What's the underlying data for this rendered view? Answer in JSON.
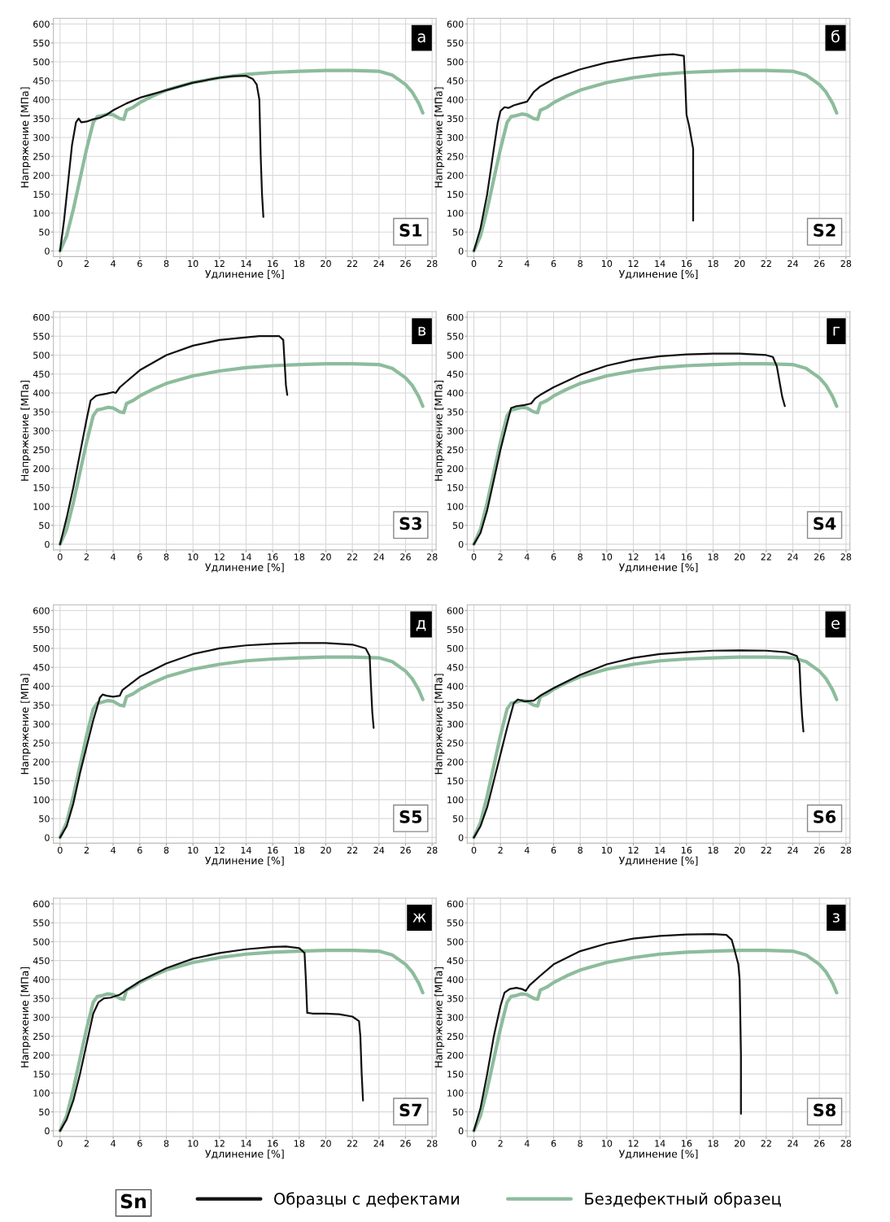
{
  "chart_data": [
    {
      "type": "line",
      "xlabel": "Удлинение [%]",
      "ylabel": "Напряжение [МПа]",
      "annotations": [
        "а",
        "S1"
      ],
      "xlim": [
        -0.5,
        28.3
      ],
      "ylim": [
        -15,
        615
      ],
      "xticks": [
        0,
        2,
        4,
        6,
        8,
        10,
        12,
        14,
        16,
        18,
        20,
        22,
        24,
        26,
        28
      ],
      "yticks": [
        0,
        50,
        100,
        150,
        200,
        250,
        300,
        350,
        400,
        450,
        500,
        550,
        600
      ],
      "grid": true,
      "legend": "bottom",
      "legend_title": "Sn",
      "series": [
        {
          "name": "Образцы с дефектами",
          "color": "#111111",
          "x": [
            0,
            0.3,
            0.6,
            0.9,
            1.2,
            1.4,
            1.6,
            2,
            2.5,
            3,
            3.5,
            4,
            5,
            6,
            8,
            10,
            12,
            13,
            14,
            14.5,
            14.8,
            15,
            15.1,
            15.2,
            15.3
          ],
          "values": [
            0,
            80,
            180,
            280,
            340,
            350,
            340,
            342,
            348,
            352,
            360,
            372,
            390,
            405,
            425,
            445,
            458,
            462,
            463,
            455,
            440,
            400,
            250,
            150,
            90
          ]
        },
        {
          "name": "Бездефектный образец",
          "color": "#8dbc9c",
          "x": [
            0,
            0.5,
            1,
            1.5,
            2,
            2.5,
            2.8,
            3.2,
            3.6,
            4,
            4.5,
            4.8,
            5,
            5.5,
            6,
            7,
            8,
            10,
            12,
            14,
            16,
            18,
            20,
            22,
            24,
            25,
            26,
            26.5,
            27,
            27.3
          ],
          "values": [
            0,
            40,
            110,
            190,
            270,
            340,
            355,
            358,
            362,
            360,
            350,
            348,
            372,
            380,
            392,
            410,
            425,
            445,
            458,
            467,
            472,
            475,
            477,
            477,
            475,
            465,
            440,
            420,
            390,
            365
          ]
        }
      ]
    },
    {
      "type": "line",
      "xlabel": "Удлинение [%]",
      "ylabel": "Напряжение [МПа]",
      "annotations": [
        "б",
        "S2"
      ],
      "xlim": [
        -0.5,
        28.3
      ],
      "ylim": [
        -15,
        615
      ],
      "xticks": [
        0,
        2,
        4,
        6,
        8,
        10,
        12,
        14,
        16,
        18,
        20,
        22,
        24,
        26,
        28
      ],
      "yticks": [
        0,
        50,
        100,
        150,
        200,
        250,
        300,
        350,
        400,
        450,
        500,
        550,
        600
      ],
      "grid": true,
      "series": [
        {
          "color": "#111111",
          "x": [
            0,
            0.5,
            1,
            1.5,
            1.8,
            2,
            2.3,
            2.6,
            3,
            3.5,
            4,
            4.5,
            5,
            6,
            8,
            10,
            12,
            14,
            15,
            15.8,
            15.9,
            16,
            16.2,
            16.4,
            16.5,
            16.5
          ],
          "values": [
            0,
            60,
            150,
            270,
            340,
            370,
            380,
            378,
            385,
            390,
            395,
            420,
            435,
            455,
            480,
            498,
            510,
            518,
            520,
            516,
            450,
            360,
            330,
            290,
            270,
            80
          ]
        },
        {
          "color": "#8dbc9c",
          "x": [
            0,
            0.5,
            1,
            1.5,
            2,
            2.5,
            2.8,
            3.2,
            3.6,
            4,
            4.5,
            4.8,
            5,
            5.5,
            6,
            7,
            8,
            10,
            12,
            14,
            16,
            18,
            20,
            22,
            24,
            25,
            26,
            26.5,
            27,
            27.3
          ],
          "values": [
            0,
            40,
            110,
            190,
            270,
            340,
            355,
            358,
            362,
            360,
            350,
            348,
            372,
            380,
            392,
            410,
            425,
            445,
            458,
            467,
            472,
            475,
            477,
            477,
            475,
            465,
            440,
            420,
            390,
            365
          ]
        }
      ]
    },
    {
      "type": "line",
      "xlabel": "Удлинение [%]",
      "ylabel": "Напряжение [МПа]",
      "annotations": [
        "в",
        "S3"
      ],
      "xlim": [
        -0.5,
        28.3
      ],
      "ylim": [
        -15,
        615
      ],
      "xticks": [
        0,
        2,
        4,
        6,
        8,
        10,
        12,
        14,
        16,
        18,
        20,
        22,
        24,
        26,
        28
      ],
      "yticks": [
        0,
        50,
        100,
        150,
        200,
        250,
        300,
        350,
        400,
        450,
        500,
        550,
        600
      ],
      "grid": true,
      "series": [
        {
          "color": "#111111",
          "x": [
            0,
            0.5,
            1,
            1.5,
            2,
            2.3,
            2.7,
            3,
            3.5,
            4,
            4.2,
            4.5,
            5,
            6,
            8,
            10,
            12,
            14,
            15,
            16.5,
            16.8,
            16.9,
            17,
            17.1
          ],
          "values": [
            0,
            70,
            150,
            240,
            330,
            380,
            392,
            395,
            398,
            402,
            400,
            415,
            430,
            460,
            500,
            525,
            540,
            547,
            550,
            550,
            540,
            480,
            420,
            395
          ]
        },
        {
          "color": "#8dbc9c",
          "x": [
            0,
            0.5,
            1,
            1.5,
            2,
            2.5,
            2.8,
            3.2,
            3.6,
            4,
            4.5,
            4.8,
            5,
            5.5,
            6,
            7,
            8,
            10,
            12,
            14,
            16,
            18,
            20,
            22,
            24,
            25,
            26,
            26.5,
            27,
            27.3
          ],
          "values": [
            0,
            40,
            110,
            190,
            270,
            340,
            355,
            358,
            362,
            360,
            350,
            348,
            372,
            380,
            392,
            410,
            425,
            445,
            458,
            467,
            472,
            475,
            477,
            477,
            475,
            465,
            440,
            420,
            390,
            365
          ]
        }
      ]
    },
    {
      "type": "line",
      "xlabel": "Удлинение [%]",
      "ylabel": "Напряжение [МПа]",
      "annotations": [
        "г",
        "S4"
      ],
      "xlim": [
        -0.5,
        28.3
      ],
      "ylim": [
        -15,
        615
      ],
      "xticks": [
        0,
        2,
        4,
        6,
        8,
        10,
        12,
        14,
        16,
        18,
        20,
        22,
        24,
        26,
        28
      ],
      "yticks": [
        0,
        50,
        100,
        150,
        200,
        250,
        300,
        350,
        400,
        450,
        500,
        550,
        600
      ],
      "grid": true,
      "series": [
        {
          "color": "#111111",
          "x": [
            0,
            0.5,
            1,
            1.5,
            2,
            2.5,
            2.8,
            3.2,
            3.8,
            4.3,
            4.6,
            5,
            6,
            8,
            10,
            12,
            14,
            16,
            18,
            20,
            22,
            22.5,
            22.8,
            23,
            23.2,
            23.4
          ],
          "values": [
            0,
            30,
            90,
            170,
            250,
            320,
            360,
            365,
            368,
            372,
            385,
            395,
            415,
            448,
            472,
            488,
            497,
            502,
            504,
            504,
            500,
            495,
            470,
            430,
            390,
            365
          ]
        },
        {
          "color": "#8dbc9c",
          "x": [
            0,
            0.5,
            1,
            1.5,
            2,
            2.5,
            2.8,
            3.2,
            3.6,
            4,
            4.5,
            4.8,
            5,
            5.5,
            6,
            7,
            8,
            10,
            12,
            14,
            16,
            18,
            20,
            22,
            24,
            25,
            26,
            26.5,
            27,
            27.3
          ],
          "values": [
            0,
            40,
            110,
            190,
            270,
            340,
            355,
            358,
            362,
            360,
            350,
            348,
            372,
            380,
            392,
            410,
            425,
            445,
            458,
            467,
            472,
            475,
            477,
            477,
            475,
            465,
            440,
            420,
            390,
            365
          ]
        }
      ]
    },
    {
      "type": "line",
      "xlabel": "Удлинение [%]",
      "ylabel": "Напряжение [МПа]",
      "annotations": [
        "д",
        "S5"
      ],
      "xlim": [
        -0.5,
        28.3
      ],
      "ylim": [
        -15,
        615
      ],
      "xticks": [
        0,
        2,
        4,
        6,
        8,
        10,
        12,
        14,
        16,
        18,
        20,
        22,
        24,
        26,
        28
      ],
      "yticks": [
        0,
        50,
        100,
        150,
        200,
        250,
        300,
        350,
        400,
        450,
        500,
        550,
        600
      ],
      "grid": true,
      "series": [
        {
          "color": "#111111",
          "x": [
            0,
            0.5,
            1,
            1.5,
            2,
            2.5,
            3,
            3.2,
            3.5,
            4,
            4.5,
            4.7,
            5,
            6,
            8,
            10,
            12,
            14,
            16,
            18,
            20,
            22,
            23,
            23.3,
            23.4,
            23.5,
            23.6
          ],
          "values": [
            0,
            30,
            90,
            170,
            240,
            310,
            370,
            378,
            375,
            372,
            375,
            390,
            398,
            425,
            460,
            485,
            500,
            508,
            512,
            514,
            514,
            510,
            500,
            480,
            400,
            330,
            290
          ]
        },
        {
          "color": "#8dbc9c",
          "x": [
            0,
            0.5,
            1,
            1.5,
            2,
            2.5,
            2.8,
            3.2,
            3.6,
            4,
            4.5,
            4.8,
            5,
            5.5,
            6,
            7,
            8,
            10,
            12,
            14,
            16,
            18,
            20,
            22,
            24,
            25,
            26,
            26.5,
            27,
            27.3
          ],
          "values": [
            0,
            40,
            110,
            190,
            270,
            340,
            355,
            358,
            362,
            360,
            350,
            348,
            372,
            380,
            392,
            410,
            425,
            445,
            458,
            467,
            472,
            475,
            477,
            477,
            475,
            465,
            440,
            420,
            390,
            365
          ]
        }
      ]
    },
    {
      "type": "line",
      "xlabel": "Удлинение [%]",
      "ylabel": "Напряжение [МПа]",
      "annotations": [
        "е",
        "S6"
      ],
      "xlim": [
        -0.5,
        28.3
      ],
      "ylim": [
        -15,
        615
      ],
      "xticks": [
        0,
        2,
        4,
        6,
        8,
        10,
        12,
        14,
        16,
        18,
        20,
        22,
        24,
        26,
        28
      ],
      "yticks": [
        0,
        50,
        100,
        150,
        200,
        250,
        300,
        350,
        400,
        450,
        500,
        550,
        600
      ],
      "grid": true,
      "series": [
        {
          "color": "#111111",
          "x": [
            0,
            0.5,
            1,
            1.5,
            2,
            2.5,
            3,
            3.3,
            3.8,
            4.5,
            5,
            6,
            8,
            10,
            12,
            14,
            16,
            18,
            20,
            22,
            23.5,
            24.3,
            24.5,
            24.6,
            24.7,
            24.8
          ],
          "values": [
            0,
            30,
            80,
            150,
            220,
            290,
            355,
            365,
            360,
            362,
            375,
            395,
            430,
            458,
            475,
            485,
            490,
            494,
            495,
            494,
            490,
            480,
            460,
            380,
            320,
            280
          ]
        },
        {
          "color": "#8dbc9c",
          "x": [
            0,
            0.5,
            1,
            1.5,
            2,
            2.5,
            2.8,
            3.2,
            3.6,
            4,
            4.5,
            4.8,
            5,
            5.5,
            6,
            7,
            8,
            10,
            12,
            14,
            16,
            18,
            20,
            22,
            24,
            25,
            26,
            26.5,
            27,
            27.3
          ],
          "values": [
            0,
            40,
            110,
            190,
            270,
            340,
            355,
            358,
            362,
            360,
            350,
            348,
            372,
            380,
            392,
            410,
            425,
            445,
            458,
            467,
            472,
            475,
            477,
            477,
            475,
            465,
            440,
            420,
            390,
            365
          ]
        }
      ]
    },
    {
      "type": "line",
      "xlabel": "Удлинение [%]",
      "ylabel": "Напряжение [МПа]",
      "annotations": [
        "ж",
        "S7"
      ],
      "xlim": [
        -0.5,
        28.3
      ],
      "ylim": [
        -15,
        615
      ],
      "xticks": [
        0,
        2,
        4,
        6,
        8,
        10,
        12,
        14,
        16,
        18,
        20,
        22,
        24,
        26,
        28
      ],
      "yticks": [
        0,
        50,
        100,
        150,
        200,
        250,
        300,
        350,
        400,
        450,
        500,
        550,
        600
      ],
      "grid": true,
      "series": [
        {
          "color": "#111111",
          "x": [
            0,
            0.5,
            1,
            1.5,
            2,
            2.5,
            2.9,
            3.3,
            3.8,
            4.5,
            5,
            6,
            8,
            10,
            12,
            14,
            16,
            17,
            18,
            18.4,
            18.5,
            18.6,
            19,
            20,
            21,
            22,
            22.5,
            22.6,
            22.7,
            22.8
          ],
          "values": [
            0,
            30,
            80,
            150,
            230,
            310,
            340,
            350,
            352,
            360,
            372,
            395,
            430,
            455,
            470,
            480,
            486,
            487,
            483,
            470,
            400,
            312,
            310,
            310,
            308,
            302,
            290,
            250,
            150,
            80
          ]
        },
        {
          "color": "#8dbc9c",
          "x": [
            0,
            0.5,
            1,
            1.5,
            2,
            2.5,
            2.8,
            3.2,
            3.6,
            4,
            4.5,
            4.8,
            5,
            5.5,
            6,
            7,
            8,
            10,
            12,
            14,
            16,
            18,
            20,
            22,
            24,
            25,
            26,
            26.5,
            27,
            27.3
          ],
          "values": [
            0,
            40,
            110,
            190,
            270,
            340,
            355,
            358,
            362,
            360,
            350,
            348,
            372,
            380,
            392,
            410,
            425,
            445,
            458,
            467,
            472,
            475,
            477,
            477,
            475,
            465,
            440,
            420,
            390,
            365
          ]
        }
      ]
    },
    {
      "type": "line",
      "xlabel": "Удлинение [%]",
      "ylabel": "Напряжение [МПа]",
      "annotations": [
        "з",
        "S8"
      ],
      "xlim": [
        -0.5,
        28.3
      ],
      "ylim": [
        -15,
        615
      ],
      "xticks": [
        0,
        2,
        4,
        6,
        8,
        10,
        12,
        14,
        16,
        18,
        20,
        22,
        24,
        26,
        28
      ],
      "yticks": [
        0,
        50,
        100,
        150,
        200,
        250,
        300,
        350,
        400,
        450,
        500,
        550,
        600
      ],
      "grid": true,
      "series": [
        {
          "color": "#111111",
          "x": [
            0,
            0.5,
            1,
            1.5,
            2,
            2.3,
            2.7,
            3.2,
            3.6,
            3.9,
            4.2,
            5,
            6,
            8,
            10,
            12,
            14,
            16,
            18,
            19,
            19.4,
            19.6,
            19.9,
            20,
            20.1,
            20.1
          ],
          "values": [
            0,
            60,
            150,
            250,
            330,
            365,
            375,
            378,
            375,
            370,
            385,
            410,
            440,
            475,
            495,
            508,
            515,
            519,
            520,
            518,
            505,
            480,
            440,
            400,
            200,
            45
          ]
        },
        {
          "color": "#8dbc9c",
          "x": [
            0,
            0.5,
            1,
            1.5,
            2,
            2.5,
            2.8,
            3.2,
            3.6,
            4,
            4.5,
            4.8,
            5,
            5.5,
            6,
            7,
            8,
            10,
            12,
            14,
            16,
            18,
            20,
            22,
            24,
            25,
            26,
            26.5,
            27,
            27.3
          ],
          "values": [
            0,
            40,
            110,
            190,
            270,
            340,
            355,
            358,
            362,
            360,
            350,
            348,
            372,
            380,
            392,
            410,
            425,
            445,
            458,
            467,
            472,
            475,
            477,
            477,
            475,
            465,
            440,
            420,
            390,
            365
          ]
        }
      ]
    }
  ]
}
